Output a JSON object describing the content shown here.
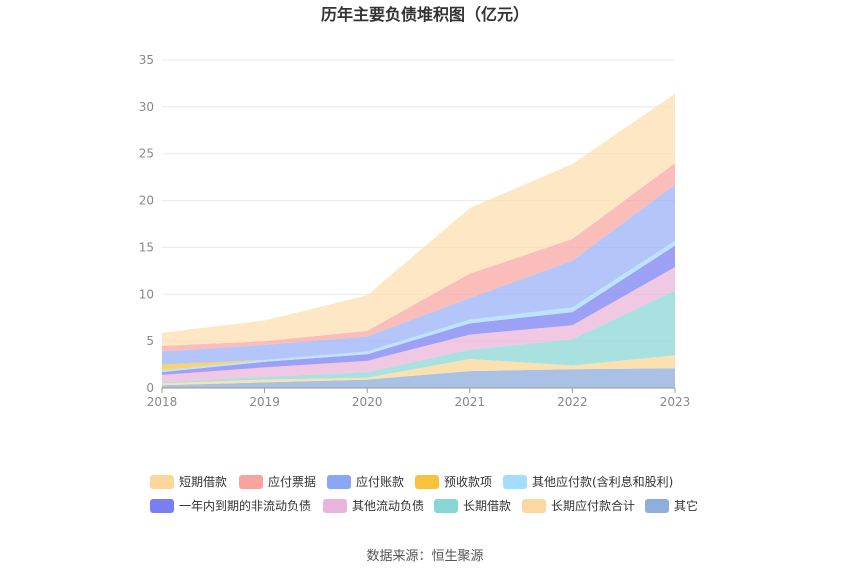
{
  "chart_data": {
    "type": "area",
    "stacked": true,
    "title": "历年主要负债堆积图（亿元）",
    "x": [
      "2018",
      "2019",
      "2020",
      "2021",
      "2022",
      "2023"
    ],
    "ylim": [
      0,
      35
    ],
    "yticks": [
      "0",
      "5",
      "10",
      "15",
      "20",
      "25",
      "30",
      "35"
    ],
    "grid": true,
    "legend_position": "bottom",
    "series": [
      {
        "name": "其它",
        "color": "#8fb0dc",
        "values": [
          0.3,
          0.6,
          0.9,
          1.8,
          2.0,
          2.1
        ]
      },
      {
        "name": "长期应付款合计",
        "color": "#fbd99a",
        "values": [
          0.2,
          0.3,
          0.2,
          1.3,
          0.4,
          1.4
        ]
      },
      {
        "name": "长期借款",
        "color": "#8fd8d6",
        "values": [
          0.1,
          0.3,
          0.6,
          1.0,
          2.8,
          6.9
        ]
      },
      {
        "name": "其他流动负债",
        "color": "#ecb9dd",
        "values": [
          0.8,
          1.0,
          1.2,
          1.6,
          1.5,
          2.5
        ]
      },
      {
        "name": "一年内到期的非流动负债",
        "color": "#8286f2",
        "values": [
          0.3,
          0.6,
          0.7,
          1.2,
          1.4,
          2.3
        ]
      },
      {
        "name": "其他应付款(含利息和股利)",
        "color": "#a9dcf8",
        "values": [
          0.2,
          0.2,
          0.3,
          0.4,
          0.5,
          0.5
        ]
      },
      {
        "name": "预收款项",
        "color": "#f9c545",
        "values": [
          0.6,
          0.0,
          0.0,
          0.0,
          0.0,
          0.0
        ]
      },
      {
        "name": "应付账款",
        "color": "#9fb5f7",
        "values": [
          1.4,
          1.6,
          1.6,
          2.3,
          5.0,
          6.0
        ]
      },
      {
        "name": "应付票据",
        "color": "#f8aaa6",
        "values": [
          0.6,
          0.4,
          0.6,
          2.6,
          2.3,
          2.3
        ]
      },
      {
        "name": "短期借款",
        "color": "#fde0b3",
        "values": [
          1.4,
          2.2,
          3.8,
          7.0,
          8.0,
          7.4
        ]
      }
    ],
    "legend_order": [
      "短期借款",
      "应付票据",
      "应付账款",
      "预收款项",
      "其他应付款(含利息和股利)",
      "一年内到期的非流动负债",
      "其他流动负债",
      "长期借款",
      "长期应付款合计",
      "其它"
    ],
    "legend_colors": {
      "短期借款": "#fdd699",
      "应付票据": "#f8a49e",
      "应付账款": "#8aa6f5",
      "预收款项": "#f8c23a",
      "其他应付款(含利息和股利)": "#a2def9",
      "一年内到期的非流动负债": "#7a7ef0",
      "其他流动负债": "#e9b4dc",
      "长期借款": "#86d6d4",
      "长期应付款合计": "#fdd7a0",
      "其它": "#8faedb"
    }
  },
  "source": "数据来源：恒生聚源"
}
